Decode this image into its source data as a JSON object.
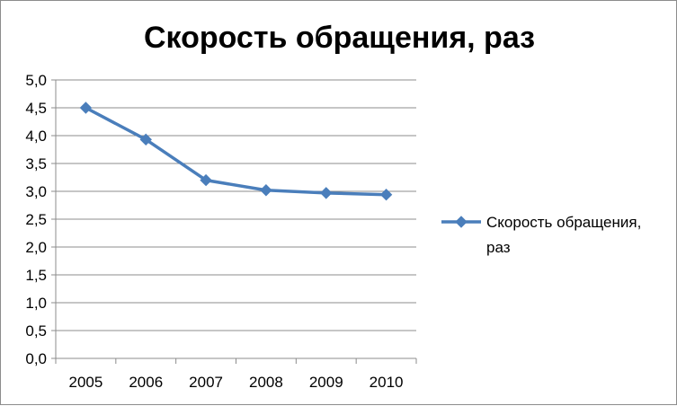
{
  "chart_data": {
    "type": "line",
    "title": "Скорость обращения, раз",
    "categories": [
      "2005",
      "2006",
      "2007",
      "2008",
      "2009",
      "2010"
    ],
    "series": [
      {
        "name": "Скорость обращения, раз",
        "legend_lines": [
          "Скорость обращения,",
          "раз"
        ],
        "values": [
          4.5,
          3.93,
          3.2,
          3.02,
          2.97,
          2.94
        ],
        "color": "#4a7ebb"
      }
    ],
    "ylim": [
      0,
      5
    ],
    "yticks": [
      "0,0",
      "0,5",
      "1,0",
      "1,5",
      "2,0",
      "2,5",
      "3,0",
      "3,5",
      "4,0",
      "4,5",
      "5,0"
    ],
    "grid": true,
    "legend_position": "right",
    "marker": "diamond"
  }
}
